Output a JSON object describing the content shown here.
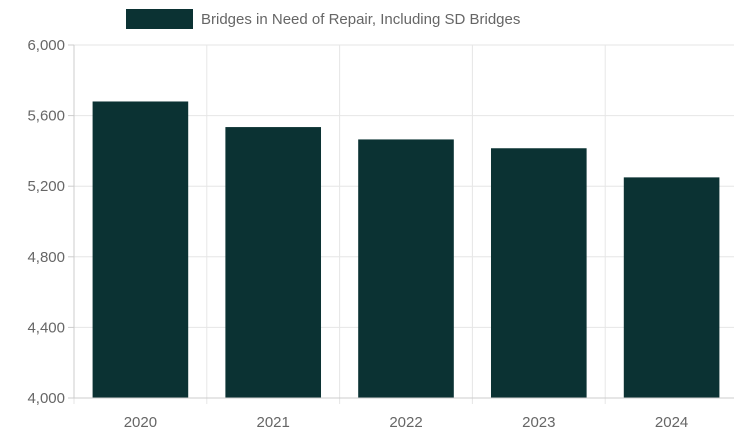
{
  "chart_data": {
    "type": "bar",
    "categories": [
      "2020",
      "2021",
      "2022",
      "2023",
      "2024"
    ],
    "series": [
      {
        "name": "Bridges in Need of Repair, Including SD Bridges",
        "color": "#0b3233",
        "values": [
          5680,
          5535,
          5465,
          5415,
          5250
        ]
      }
    ],
    "ylim": [
      4000,
      6000
    ],
    "y_ticks": [
      4000,
      4400,
      4800,
      5200,
      5600,
      6000
    ],
    "y_tick_labels": [
      "4,000",
      "4,400",
      "4,800",
      "5,200",
      "5,600",
      "6,000"
    ],
    "grid": true,
    "legend_position": "top",
    "title": "",
    "xlabel": "",
    "ylabel": ""
  }
}
